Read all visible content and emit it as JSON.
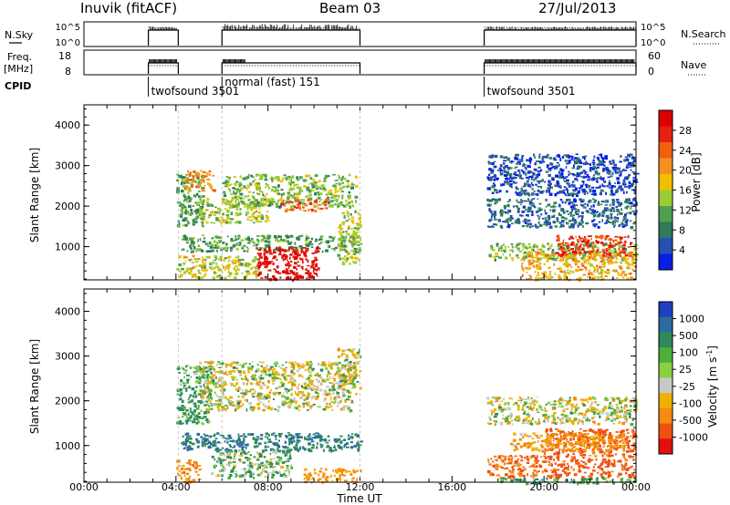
{
  "header": {
    "station": "Inuvik (fitACF)",
    "beam": "Beam 03",
    "date": "27/Jul/2013"
  },
  "top_panels": {
    "nsky_label": "N.Sky",
    "nsky_ticks": [
      "10^5",
      "10^0"
    ],
    "nsearch_label": "N.Search",
    "nsearch_ticks": [
      "10^5",
      "10^0"
    ],
    "freq_label": "Freq.",
    "freq_unit": "[MHz]",
    "freq_ticks": [
      "18",
      "8"
    ],
    "nave_label": "Nave",
    "nave_ticks": [
      "60",
      "0"
    ],
    "cpid_label": "CPID",
    "cpid_segments": [
      {
        "name": "twofsound 3501",
        "start": 2.8,
        "end": 4.1
      },
      {
        "name": "normal (fast) 151",
        "start": 6.0,
        "end": 12.0
      },
      {
        "name": "twofsound 3501",
        "start": 17.4,
        "end": 24.0
      }
    ]
  },
  "chart_data": [
    {
      "type": "heatmap",
      "name": "power",
      "ylabel": "Slant Range [km]",
      "xlabel": "Time UT",
      "x_ticks": [
        "00:00",
        "04:00",
        "08:00",
        "12:00",
        "16:00",
        "20:00",
        "00:00"
      ],
      "xlim": [
        0,
        24
      ],
      "y_ticks": [
        "1000",
        "2000",
        "3000",
        "4000"
      ],
      "ylim": [
        180,
        4500
      ],
      "colorbar": {
        "label": "Power [dB]",
        "ticks": [
          "4",
          "8",
          "12",
          "16",
          "20",
          "24",
          "28"
        ],
        "range": [
          0,
          30
        ],
        "colors": [
          "#0a1ee6",
          "#2850b4",
          "#2e7a5a",
          "#4fa050",
          "#9acd32",
          "#f0c000",
          "#f59020",
          "#f06010",
          "#e62010",
          "#dd0000"
        ]
      },
      "blobs": [
        {
          "t0": 4.0,
          "t1": 5.2,
          "r0": 1500,
          "r1": 2800,
          "value": 10
        },
        {
          "t0": 4.3,
          "t1": 5.6,
          "r0": 2400,
          "r1": 2900,
          "value": 20
        },
        {
          "t0": 5.0,
          "t1": 8.0,
          "r0": 1600,
          "r1": 2200,
          "value": 14
        },
        {
          "t0": 6.0,
          "t1": 11.8,
          "r0": 2000,
          "r1": 2800,
          "value": 12
        },
        {
          "t0": 8.5,
          "t1": 10.5,
          "r0": 1900,
          "r1": 2200,
          "value": 22
        },
        {
          "t0": 4.2,
          "t1": 12.0,
          "r0": 900,
          "r1": 1300,
          "value": 10
        },
        {
          "t0": 4.0,
          "t1": 7.5,
          "r0": 250,
          "r1": 800,
          "value": 15
        },
        {
          "t0": 7.5,
          "t1": 10.2,
          "r0": 200,
          "r1": 1000,
          "value": 28
        },
        {
          "t0": 11.0,
          "t1": 12.0,
          "r0": 600,
          "r1": 1900,
          "value": 14
        },
        {
          "t0": 17.5,
          "t1": 24.0,
          "r0": 1500,
          "r1": 2200,
          "value": 6
        },
        {
          "t0": 17.5,
          "t1": 24.0,
          "r0": 700,
          "r1": 1100,
          "value": 12
        },
        {
          "t0": 19.0,
          "t1": 24.0,
          "r0": 200,
          "r1": 900,
          "value": 18
        },
        {
          "t0": 20.5,
          "t1": 23.8,
          "r0": 800,
          "r1": 1300,
          "value": 25
        },
        {
          "t0": 17.5,
          "t1": 24.0,
          "r0": 2300,
          "r1": 3300,
          "value": 4
        }
      ]
    },
    {
      "type": "heatmap",
      "name": "velocity",
      "ylabel": "Slant Range [km]",
      "xlabel": "Time UT",
      "x_ticks": [
        "00:00",
        "04:00",
        "08:00",
        "12:00",
        "16:00",
        "20:00",
        "00:00"
      ],
      "xlim": [
        0,
        24
      ],
      "y_ticks": [
        "1000",
        "2000",
        "3000",
        "4000"
      ],
      "ylim": [
        180,
        4500
      ],
      "colorbar": {
        "label": "Velocity [m s^-1]",
        "ticks": [
          "1000",
          "500",
          "100",
          "25",
          "-25",
          "-100",
          "-500",
          "-1000"
        ],
        "range": [
          -1200,
          1200
        ],
        "colors": [
          "#2040c0",
          "#2e6aa0",
          "#2e8a5a",
          "#4fae3c",
          "#8ad040",
          "#c8c8c8",
          "#f0b000",
          "#f58a10",
          "#f05010",
          "#e01010"
        ]
      },
      "blobs": [
        {
          "t0": 4.0,
          "t1": 5.5,
          "r0": 1500,
          "r1": 2800,
          "value": 150
        },
        {
          "t0": 5.0,
          "t1": 11.8,
          "r0": 1800,
          "r1": 2900,
          "value": 0
        },
        {
          "t0": 11.0,
          "t1": 12.0,
          "r0": 2300,
          "r1": 3200,
          "value": 0
        },
        {
          "t0": 4.2,
          "t1": 12.0,
          "r0": 900,
          "r1": 1300,
          "value": 300
        },
        {
          "t0": 5.5,
          "t1": 9.0,
          "r0": 300,
          "r1": 900,
          "value": 80
        },
        {
          "t0": 4.0,
          "t1": 5.0,
          "r0": 200,
          "r1": 700,
          "value": -200
        },
        {
          "t0": 9.5,
          "t1": 12.0,
          "r0": 200,
          "r1": 500,
          "value": -150
        },
        {
          "t0": 17.5,
          "t1": 24.0,
          "r0": 1500,
          "r1": 2100,
          "value": 0
        },
        {
          "t0": 17.5,
          "t1": 20.0,
          "r0": 300,
          "r1": 800,
          "value": -300
        },
        {
          "t0": 20.0,
          "t1": 24.0,
          "r0": 300,
          "r1": 1400,
          "value": -400
        },
        {
          "t0": 18.5,
          "t1": 23.5,
          "r0": 900,
          "r1": 1300,
          "value": -150
        },
        {
          "t0": 18.0,
          "t1": 24.0,
          "r0": 180,
          "r1": 300,
          "value": 150
        }
      ]
    }
  ]
}
